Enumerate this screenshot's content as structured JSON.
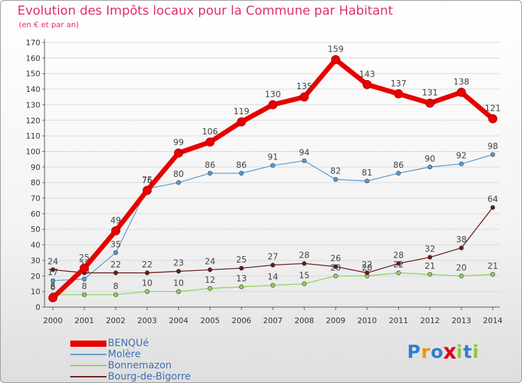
{
  "header": {
    "title": "Evolution des Impôts locaux pour la Commune par Habitant",
    "subtitle": "(en € et par an)"
  },
  "brand": {
    "text": "Proxiti",
    "letters": [
      "P",
      "r",
      "o",
      "x",
      "i",
      "t",
      "i"
    ],
    "colors": [
      "#2f7fd0",
      "#f39200",
      "#2f7fd0",
      "#e2001a",
      "#8cc63f",
      "#2f7fd0",
      "#8cc63f"
    ]
  },
  "chart_data": {
    "type": "line",
    "title": "Evolution des Impôts locaux pour la Commune par Habitant",
    "subtitle": "(en € et par an)",
    "x": [
      "2000",
      "2001",
      "2002",
      "2003",
      "2004",
      "2005",
      "2006",
      "2007",
      "2008",
      "2009",
      "2010",
      "2011",
      "2012",
      "2013",
      "2014"
    ],
    "ylim": [
      0,
      170
    ],
    "yticks": [
      0,
      10,
      20,
      30,
      40,
      50,
      60,
      70,
      80,
      90,
      100,
      110,
      120,
      130,
      140,
      150,
      160,
      170
    ],
    "grid": true,
    "legend_position": "bottom-left",
    "series": [
      {
        "name": "BENQUé",
        "color": "#e80000",
        "width": 7,
        "values": [
          6,
          25,
          49,
          75,
          99,
          106,
          119,
          130,
          135,
          159,
          143,
          137,
          131,
          138,
          121
        ]
      },
      {
        "name": "Molère",
        "color": "#5b9bd0",
        "width": 1.3,
        "values": [
          17,
          18,
          35,
          76,
          80,
          86,
          86,
          91,
          94,
          82,
          81,
          86,
          90,
          92,
          98
        ]
      },
      {
        "name": "Bonnemazon",
        "color": "#8cd35f",
        "width": 1.3,
        "values": [
          8,
          8,
          8,
          10,
          10,
          12,
          13,
          14,
          15,
          20,
          20,
          22,
          21,
          20,
          21
        ]
      },
      {
        "name": "Bourg-de-Bigorre",
        "color": "#6b1a1a",
        "width": 1.3,
        "values": [
          24,
          22,
          22,
          22,
          23,
          24,
          25,
          27,
          28,
          26,
          22,
          28,
          32,
          38,
          64
        ]
      }
    ]
  }
}
